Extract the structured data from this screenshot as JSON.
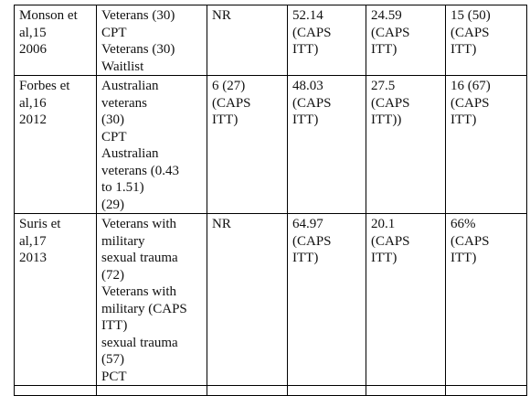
{
  "rows": [
    {
      "study": [
        "Monson et",
        "al,15",
        "2006"
      ],
      "population": [
        "Veterans (30)",
        "CPT",
        "Veterans (30)",
        "Waitlist"
      ],
      "col3": [
        "NR"
      ],
      "col4": [
        "52.14",
        "(CAPS",
        "ITT)"
      ],
      "col5": [
        "24.59",
        "(CAPS",
        "ITT)"
      ],
      "col6": [
        "15 (50)",
        "(CAPS",
        "ITT)"
      ]
    },
    {
      "study": [
        "Forbes et",
        "al,16",
        "2012"
      ],
      "population": [
        "Australian",
        "veterans",
        "(30)",
        "CPT",
        "Australian",
        "veterans (0.43",
        "to 1.51)",
        "(29)"
      ],
      "col3": [
        "6 (27)",
        "(CAPS",
        "ITT)"
      ],
      "col4": [
        "48.03",
        "(CAPS",
        "ITT)"
      ],
      "col5": [
        "27.5",
        "(CAPS",
        "ITT))"
      ],
      "col6": [
        "16 (67)",
        "(CAPS",
        "ITT)"
      ]
    },
    {
      "study": [
        "Suris et",
        "al,17",
        "2013"
      ],
      "population": [
        "Veterans with",
        "military",
        "sexual trauma",
        "(72)",
        "Veterans with",
        "military (CAPS",
        "ITT)",
        "sexual trauma",
        "(57)",
        "PCT"
      ],
      "col3": [
        "NR"
      ],
      "col4": [
        "64.97",
        "(CAPS",
        "ITT)"
      ],
      "col5": [
        "20.1",
        "(CAPS",
        "ITT)"
      ],
      "col6": [
        "66%",
        "(CAPS",
        "ITT)"
      ]
    }
  ]
}
